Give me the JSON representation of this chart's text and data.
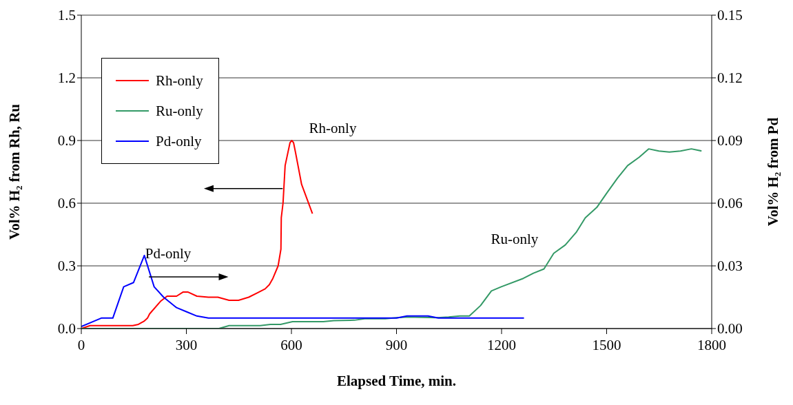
{
  "chart_data": {
    "type": "line",
    "xlabel": "Elapsed Time, min.",
    "ylabel": "Vol% H₂ from Rh, Ru",
    "y2label": "Vol% H₂ from Pd",
    "xlim": [
      0,
      1800
    ],
    "xticks": [
      0,
      300,
      600,
      900,
      1200,
      1500,
      1800
    ],
    "ylim": [
      0,
      1.5
    ],
    "yticks": [
      {
        "value": 0,
        "label": "0.0"
      },
      0.3,
      0.6,
      0.9,
      1.2,
      1.5
    ],
    "y2lim": [
      0,
      0.15
    ],
    "y2ticks": [
      {
        "value": 0,
        "label": "0.00"
      },
      0.03,
      0.06,
      0.09,
      0.12,
      0.15
    ],
    "grid": "y",
    "legend": "top left",
    "marker": "none",
    "line_style": "solid",
    "series": [
      {
        "name": "Rh-only",
        "color": "#ff0000",
        "x": [
          0,
          25,
          147,
          163,
          179,
          189,
          195,
          226,
          245,
          272,
          291,
          304,
          330,
          363,
          390,
          422,
          449,
          478,
          504,
          525,
          537,
          547,
          562,
          570,
          571,
          576,
          582,
          596,
          601,
          606,
          612,
          629,
          660
        ],
        "values": [
          0,
          0.014,
          0.014,
          0.02,
          0.035,
          0.05,
          0.07,
          0.13,
          0.155,
          0.155,
          0.175,
          0.175,
          0.155,
          0.15,
          0.15,
          0.135,
          0.135,
          0.15,
          0.172,
          0.19,
          0.21,
          0.24,
          0.3,
          0.38,
          0.53,
          0.6,
          0.78,
          0.89,
          0.9,
          0.89,
          0.84,
          0.69,
          0.55
        ]
      },
      {
        "name": "Ru-only",
        "color": "#339966",
        "x": [
          0,
          393,
          422,
          511,
          540,
          569,
          603,
          691,
          721,
          780,
          809,
          868,
          901,
          931,
          1016,
          1049,
          1081,
          1108,
          1140,
          1171,
          1199,
          1262,
          1291,
          1321,
          1349,
          1382,
          1413,
          1439,
          1472,
          1501,
          1531,
          1560,
          1593,
          1620,
          1649,
          1679,
          1711,
          1742,
          1771
        ],
        "values": [
          0,
          0,
          0.014,
          0.014,
          0.02,
          0.02,
          0.033,
          0.033,
          0.038,
          0.04,
          0.047,
          0.047,
          0.052,
          0.055,
          0.052,
          0.055,
          0.06,
          0.06,
          0.11,
          0.18,
          0.2,
          0.24,
          0.265,
          0.285,
          0.36,
          0.4,
          0.46,
          0.53,
          0.58,
          0.65,
          0.72,
          0.78,
          0.82,
          0.86,
          0.85,
          0.845,
          0.85,
          0.86,
          0.85
        ]
      },
      {
        "name": "Pd-only",
        "color": "#0000ff",
        "axis": "y2",
        "x": [
          0,
          57,
          90,
          121,
          149,
          180,
          208,
          235,
          272,
          301,
          330,
          363,
          900,
          930,
          990,
          1020,
          1264
        ],
        "values": [
          0.001,
          0.005,
          0.005,
          0.02,
          0.022,
          0.035,
          0.02,
          0.015,
          0.01,
          0.008,
          0.006,
          0.005,
          0.005,
          0.006,
          0.006,
          0.005,
          0.005
        ]
      }
    ],
    "annotations": [
      "Rh-only",
      "Pd-only",
      "Ru-only"
    ]
  }
}
